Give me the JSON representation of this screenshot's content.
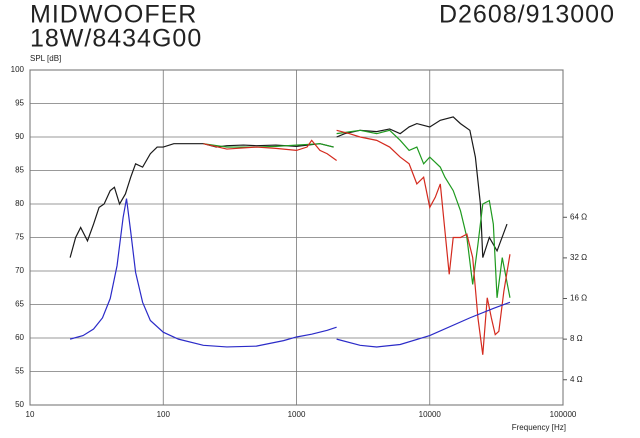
{
  "chart_data": {
    "type": "line",
    "title": "MIDWOOFER",
    "subtitle": "18W/8434G00",
    "model": "D2608/913000",
    "y_label": "SPL [dB]",
    "x_label": "Frequency [Hz]",
    "xlog": true,
    "y2log": true,
    "grid": true,
    "xlim": [
      10,
      100000
    ],
    "xticks": [
      10,
      100,
      1000,
      10000,
      100000
    ],
    "ylim": [
      50,
      100
    ],
    "yticks": [
      50,
      55,
      60,
      65,
      70,
      75,
      80,
      85,
      90,
      95,
      100
    ],
    "y2lim": [
      2.6,
      790
    ],
    "y2ticks": [
      {
        "value": 4,
        "label": "4 Ω"
      },
      {
        "value": 8,
        "label": "8 Ω"
      },
      {
        "value": 16,
        "label": "16 Ω"
      },
      {
        "value": 32,
        "label": "32 Ω"
      },
      {
        "value": 64,
        "label": "64 Ω"
      }
    ],
    "series": [
      {
        "color": "#1a1a1a",
        "x": [
          20,
          22,
          24,
          27,
          30,
          33,
          36,
          40,
          43,
          47,
          52,
          57,
          62,
          70,
          80,
          90,
          100,
          120,
          150,
          200,
          250,
          300,
          400,
          500,
          700,
          1000,
          1500,
          1900,
          null,
          2000,
          2300,
          3000,
          4000,
          5000,
          6000,
          7000,
          8000,
          10000,
          12000,
          15000,
          17000,
          20000,
          22000,
          24000,
          25000,
          28000,
          32000,
          38000
        ],
        "values": [
          72,
          75,
          76.5,
          74.5,
          77,
          79.5,
          80,
          82,
          82.5,
          80,
          81.5,
          84,
          86,
          85.5,
          87.5,
          88.5,
          88.5,
          89,
          89,
          89,
          88.5,
          88.7,
          88.8,
          88.7,
          88.8,
          88.6,
          89,
          88.5,
          null,
          90,
          90.5,
          91,
          90.8,
          91.2,
          90.5,
          91.5,
          92,
          91.5,
          92.5,
          93,
          92,
          91,
          87,
          80,
          72,
          75,
          73,
          77
        ]
      },
      {
        "color": "#1f9a1f",
        "x": [
          200,
          300,
          500,
          700,
          1000,
          1500,
          1900,
          null,
          2000,
          3000,
          4000,
          5000,
          6000,
          7000,
          8000,
          9000,
          10000,
          12000,
          13000,
          15000,
          17000,
          19000,
          21000,
          23000,
          25000,
          28000,
          30000,
          32000,
          35000,
          40000
        ],
        "values": [
          89,
          88.5,
          88.5,
          88.6,
          88.8,
          89,
          88.5,
          null,
          90.5,
          91,
          90.5,
          91,
          89.5,
          88,
          88.5,
          86,
          87,
          85.5,
          84,
          82,
          79,
          75,
          68,
          74,
          80,
          80.5,
          77,
          66,
          72,
          66
        ]
      },
      {
        "color": "#d42a1e",
        "x": [
          200,
          300,
          500,
          700,
          1000,
          1200,
          1300,
          1500,
          1700,
          2000,
          null,
          2000,
          2500,
          3000,
          4000,
          5000,
          6000,
          7000,
          8000,
          9000,
          10000,
          11000,
          12000,
          13000,
          14000,
          15000,
          17000,
          19000,
          21000,
          23000,
          25000,
          27000,
          29000,
          31000,
          33000,
          36000,
          40000
        ],
        "values": [
          89,
          88.2,
          88.5,
          88.3,
          88,
          88.5,
          89.5,
          88,
          87.5,
          86.5,
          null,
          91,
          90.5,
          90,
          89.5,
          88.5,
          87,
          86,
          83,
          84,
          79.5,
          81,
          83,
          76,
          69.5,
          75,
          75,
          75.5,
          72,
          63,
          57.5,
          66,
          63,
          60.5,
          61,
          67,
          72.5
        ]
      },
      {
        "color": "#2b2bc8",
        "axis": "y2",
        "x": [
          20,
          25,
          30,
          35,
          40,
          45,
          50,
          53,
          57,
          62,
          70,
          80,
          100,
          130,
          200,
          300,
          500,
          800,
          1000,
          1300,
          1700,
          2000,
          null,
          2000,
          3000,
          4000,
          6000,
          10000,
          20000,
          30000,
          40000
        ],
        "values": [
          8,
          8.5,
          9.5,
          11.5,
          16,
          28,
          64,
          88,
          50,
          25,
          15,
          11,
          9,
          8,
          7.2,
          7,
          7.1,
          7.8,
          8.3,
          8.7,
          9.3,
          9.8,
          null,
          8,
          7.2,
          7,
          7.3,
          8.5,
          11.5,
          13.5,
          15
        ]
      }
    ]
  }
}
